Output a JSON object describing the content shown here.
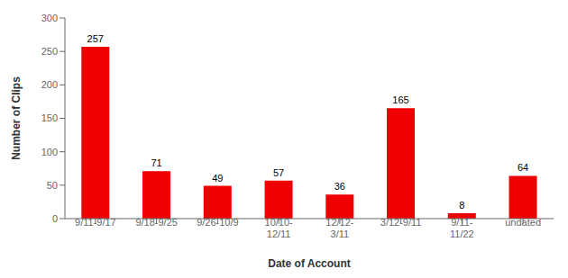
{
  "chart_data": {
    "type": "bar",
    "categories": [
      "9/11-9/17",
      "9/18-9/25",
      "9/26-10/9",
      "10/10-\n12/11",
      "12/12-\n3/11",
      "3/12-9/11",
      "9/11-\n11/22",
      "undated"
    ],
    "values": [
      257,
      71,
      49,
      57,
      36,
      165,
      8,
      64
    ],
    "color": "#ee0000",
    "xlabel": "Date of Account",
    "ylabel": "Number of Clips",
    "ylim": [
      0,
      300
    ],
    "yticks": [
      0,
      50,
      100,
      150,
      200,
      250,
      300
    ],
    "grid": false,
    "data_labels": true
  }
}
